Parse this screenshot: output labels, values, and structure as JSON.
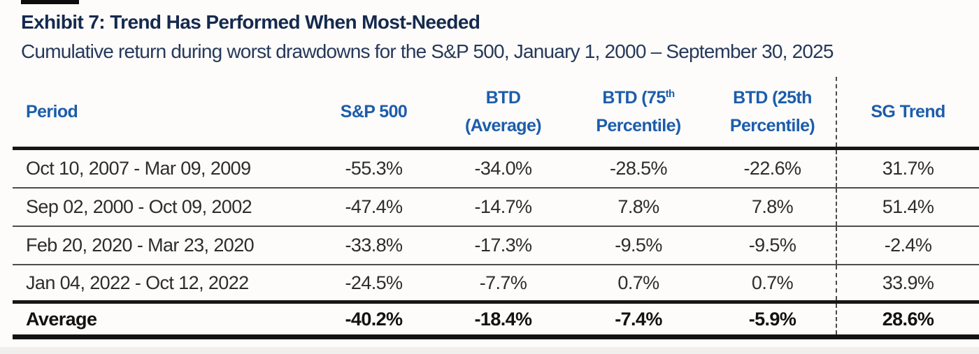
{
  "page": {
    "title": "Exhibit 7: Trend Has Performed When Most-Needed",
    "subtitle": "Cumulative return during worst drawdowns for the S&P 500, January 1, 2000 – September 30, 2025"
  },
  "table": {
    "columns": {
      "period": "Period",
      "sp500": "S&P 500",
      "btd_avg_line1": "BTD",
      "btd_avg_line2": "(Average)",
      "btd75_line1": "BTD (75",
      "btd75_sup": "th",
      "btd75_line2": "Percentile)",
      "btd25_line1": "BTD (25th",
      "btd25_line2": "Percentile)",
      "sg_trend": "SG Trend"
    },
    "rows": [
      {
        "period": "Oct 10, 2007 - Mar 09, 2009",
        "sp500": "-55.3%",
        "btd_avg": "-34.0%",
        "btd75": "-28.5%",
        "btd25": "-22.6%",
        "sg_trend": "31.7%"
      },
      {
        "period": "Sep 02, 2000 - Oct 09, 2002",
        "sp500": "-47.4%",
        "btd_avg": "-14.7%",
        "btd75": "7.8%",
        "btd25": "7.8%",
        "sg_trend": "51.4%"
      },
      {
        "period": "Feb 20, 2020 - Mar 23, 2020",
        "sp500": "-33.8%",
        "btd_avg": "-17.3%",
        "btd75": "-9.5%",
        "btd25": "-9.5%",
        "sg_trend": "-2.4%"
      },
      {
        "period": "Jan 04, 2022 - Oct 12, 2022",
        "sp500": "-24.5%",
        "btd_avg": "-7.7%",
        "btd75": "0.7%",
        "btd25": "0.7%",
        "sg_trend": "33.9%"
      }
    ],
    "average": {
      "period": "Average",
      "sp500": "-40.2%",
      "btd_avg": "-18.4%",
      "btd75": "-7.4%",
      "btd25": "-5.9%",
      "sg_trend": "28.6%"
    }
  },
  "colors": {
    "title_navy": "#152a4e",
    "header_blue": "#1c5dab",
    "body_text": "#2d2d2d",
    "rule_dark": "#161616"
  }
}
